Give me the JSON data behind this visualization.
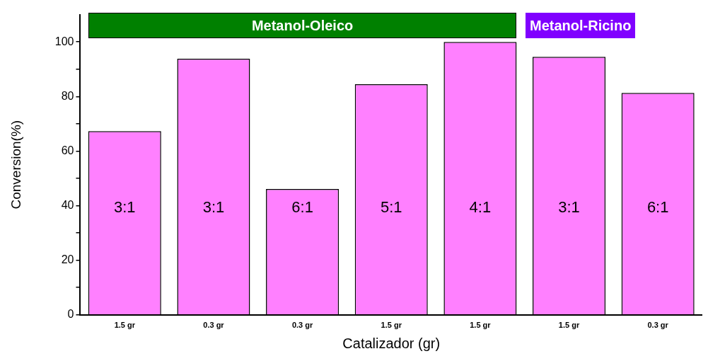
{
  "chart_data": {
    "type": "bar",
    "xlabel": "Catalizador (gr)",
    "ylabel": "Conversion(%)",
    "categories": [
      "1.5 gr",
      "0.3 gr",
      "0.3 gr",
      "1.5 gr",
      "1.5 gr",
      "1.5 gr",
      "0.3 gr"
    ],
    "values": [
      67.3,
      93.8,
      46.1,
      84.5,
      100,
      94.5,
      81.3
    ],
    "color": "#ff80ff",
    "ylim": [
      0,
      110
    ],
    "yticks": [
      0,
      {
        "value": 10,
        "label": null
      },
      20,
      {
        "value": 30,
        "label": null
      },
      40,
      {
        "value": 50,
        "label": null
      },
      60,
      {
        "value": 70,
        "label": null
      },
      80,
      {
        "value": 90,
        "label": null
      },
      100
    ],
    "annotations": [
      "3:1",
      "3:1",
      "6:1",
      "5:1",
      "4:1",
      "3:1",
      "6:1",
      "Metanol-Oleico",
      "Metanol-Ricino"
    ],
    "grid": false,
    "legend": false
  }
}
